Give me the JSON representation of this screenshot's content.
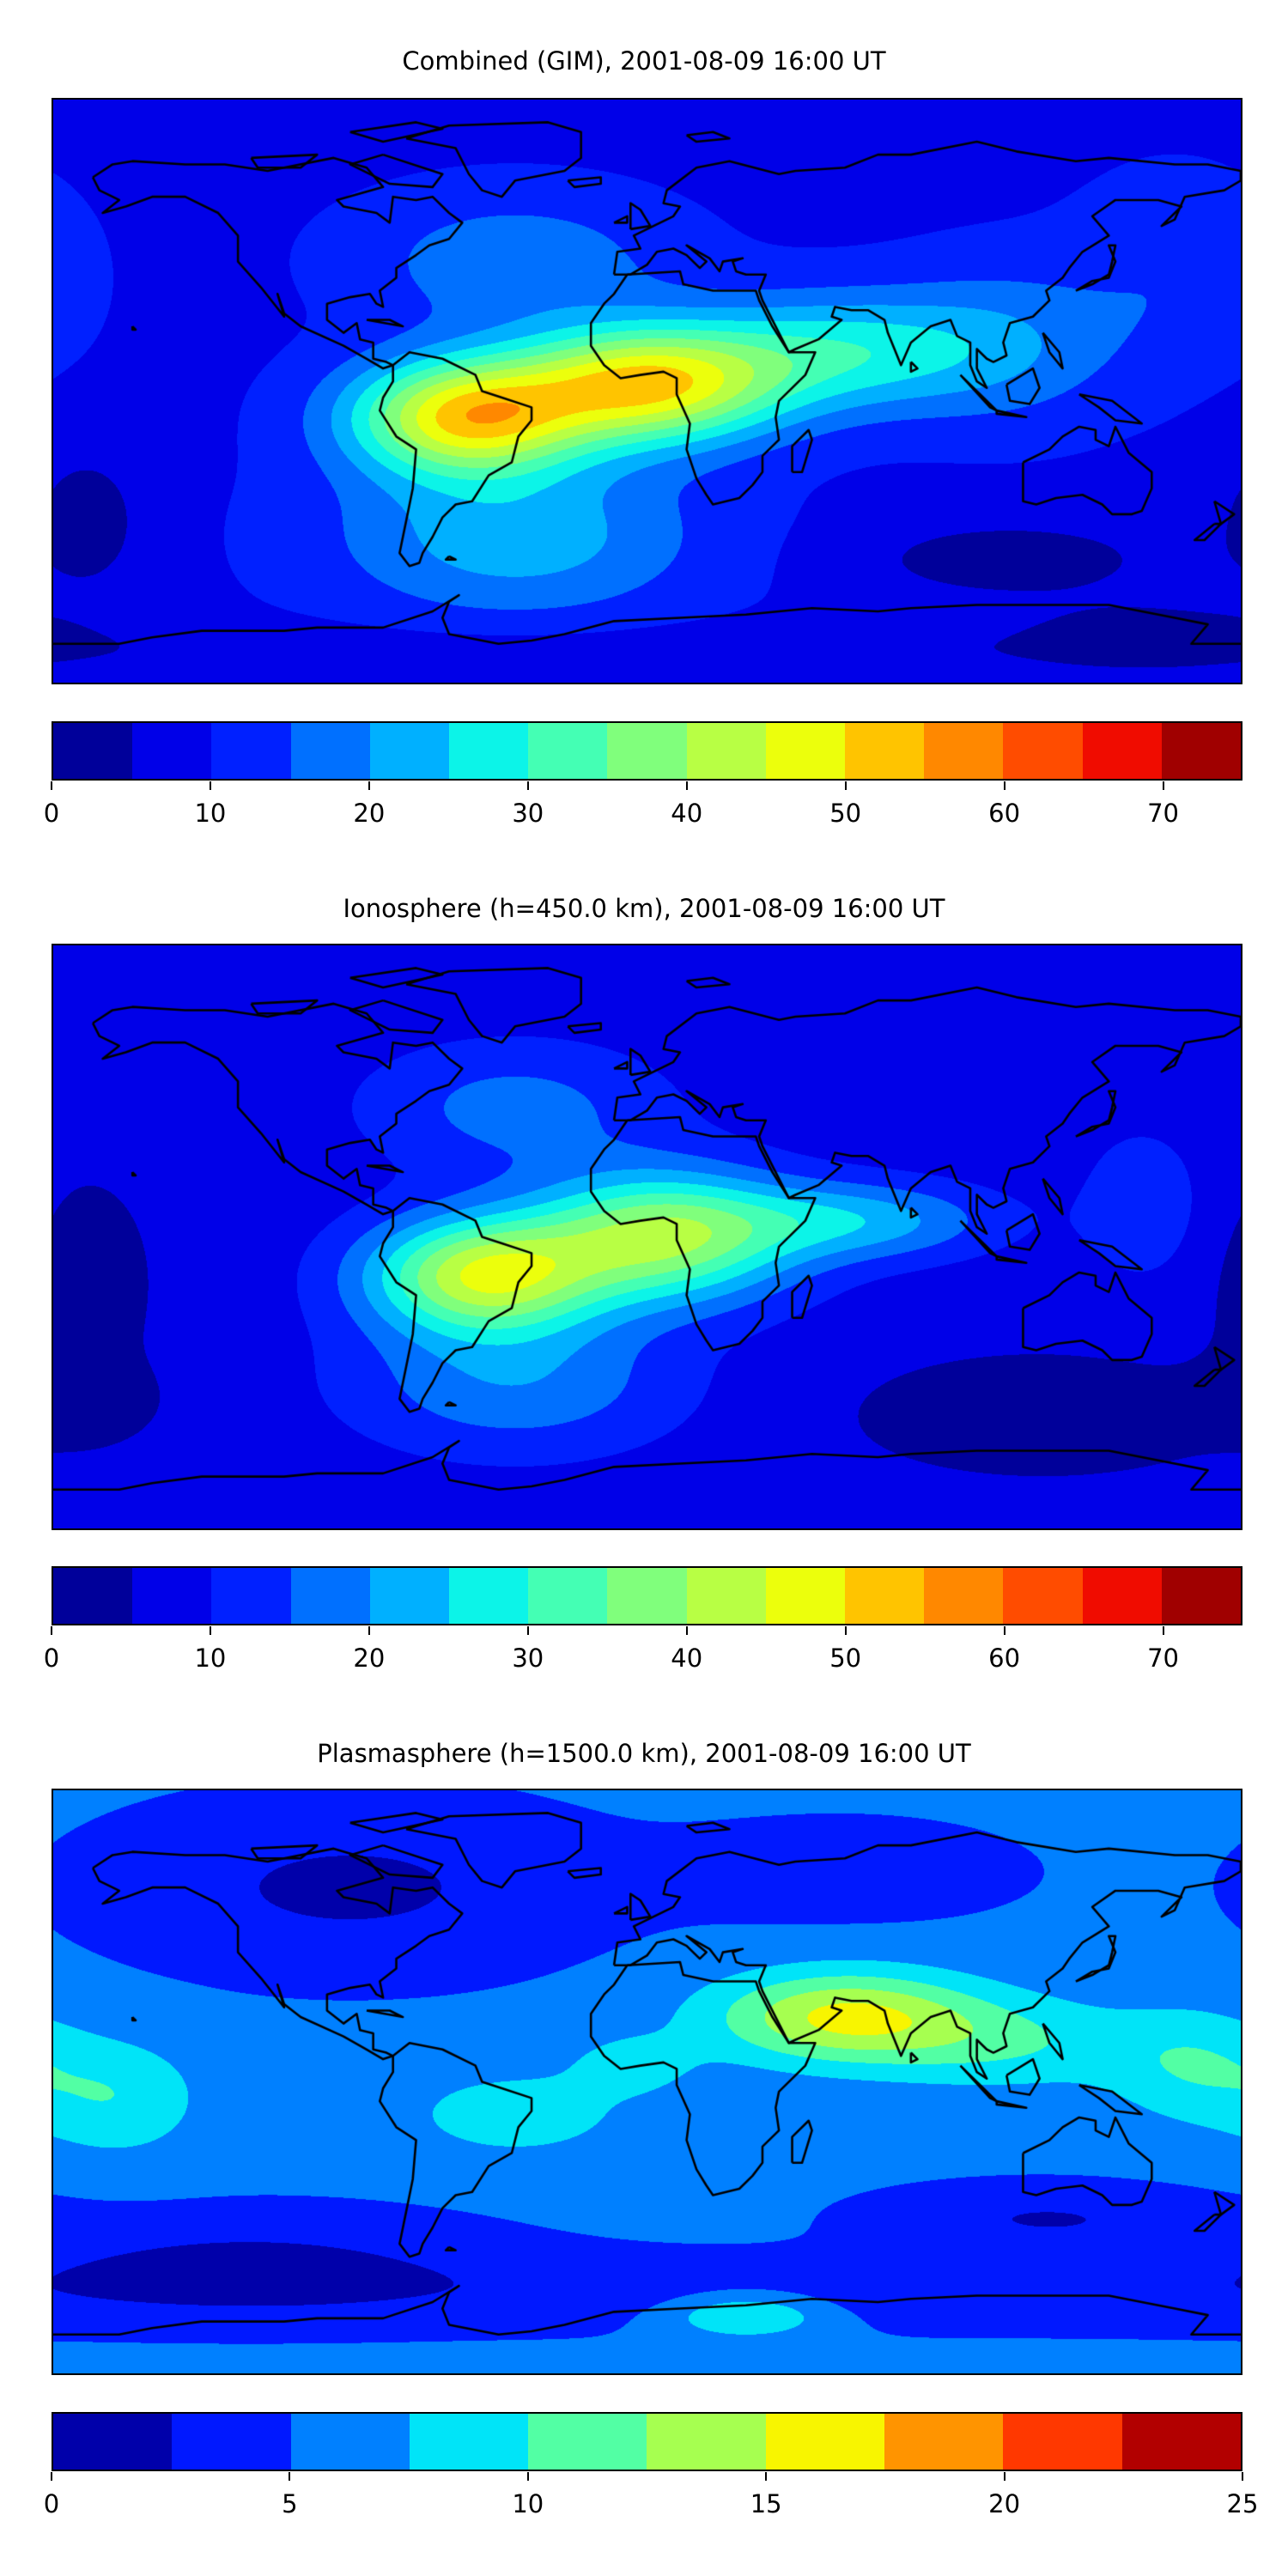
{
  "panels": [
    {
      "title": "Combined (GIM), 2001-08-09 16:00 UT",
      "colorbar": {
        "min": 0,
        "max": 75,
        "levels": [
          0,
          5,
          10,
          15,
          20,
          25,
          30,
          35,
          40,
          45,
          50,
          55,
          60,
          65,
          70,
          75
        ],
        "colors": [
          "#00009a",
          "#0000e8",
          "#0020ff",
          "#0070ff",
          "#00b0ff",
          "#0cf4e8",
          "#44ffb4",
          "#80ff7c",
          "#b8ff44",
          "#ecff0c",
          "#ffc400",
          "#ff8800",
          "#ff4c00",
          "#f00c00",
          "#a00000"
        ],
        "ticks": [
          "0",
          "10",
          "20",
          "30",
          "40",
          "50",
          "60",
          "70"
        ],
        "tick_values": [
          0,
          10,
          20,
          30,
          40,
          50,
          60,
          70
        ]
      }
    },
    {
      "title": "Ionosphere  (h=450.0 km), 2001-08-09 16:00 UT",
      "colorbar": {
        "min": 0,
        "max": 75,
        "levels": [
          0,
          5,
          10,
          15,
          20,
          25,
          30,
          35,
          40,
          45,
          50,
          55,
          60,
          65,
          70,
          75
        ],
        "colors": [
          "#00009a",
          "#0000e8",
          "#0020ff",
          "#0070ff",
          "#00b0ff",
          "#0cf4e8",
          "#44ffb4",
          "#80ff7c",
          "#b8ff44",
          "#ecff0c",
          "#ffc400",
          "#ff8800",
          "#ff4c00",
          "#f00c00",
          "#a00000"
        ],
        "ticks": [
          "0",
          "10",
          "20",
          "30",
          "40",
          "50",
          "60",
          "70"
        ],
        "tick_values": [
          0,
          10,
          20,
          30,
          40,
          50,
          60,
          70
        ]
      }
    },
    {
      "title": "Plasmasphere (h=1500.0 km), 2001-08-09 16:00 UT",
      "colorbar": {
        "min": 0,
        "max": 25,
        "levels": [
          0,
          2.5,
          5,
          7.5,
          10,
          12.5,
          15,
          17.5,
          20,
          22.5,
          25
        ],
        "colors": [
          "#0000aa",
          "#0018ff",
          "#0080ff",
          "#00e4f8",
          "#52ffa4",
          "#a6ff50",
          "#f8f500",
          "#ff9400",
          "#ff3800",
          "#b20000"
        ],
        "ticks": [
          "0",
          "5",
          "10",
          "15",
          "20",
          "25"
        ],
        "tick_values": [
          0,
          5,
          10,
          15,
          20,
          25
        ]
      }
    }
  ]
}
